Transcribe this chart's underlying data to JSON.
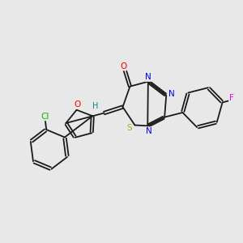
{
  "bg_color": "#e8e8e8",
  "bond_color": "#1a1a1a",
  "atom_colors": {
    "O": "#ff0000",
    "N": "#0000ee",
    "S": "#bbaa00",
    "Cl": "#00bb00",
    "F": "#ee00ee",
    "H": "#008888"
  },
  "lw": 1.3,
  "fs": 7.5
}
